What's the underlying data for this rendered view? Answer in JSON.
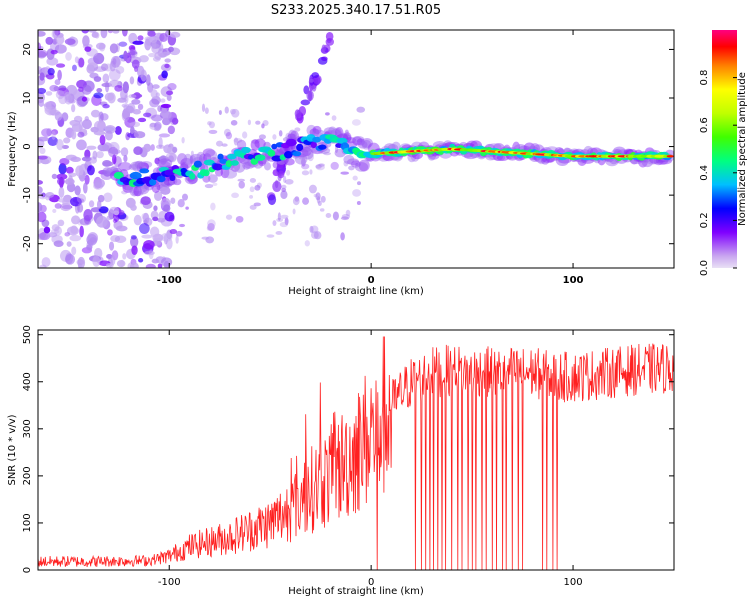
{
  "chart_data": [
    {
      "type": "heatmap",
      "title": "S233.2025.340.17.51.R05",
      "xlabel": "Height of straight line (km)",
      "ylabel": "Frequency (Hz)",
      "xlim": [
        -165,
        150
      ],
      "ylim": [
        -25,
        24
      ],
      "xticks": [
        -100,
        0,
        100
      ],
      "yticks": [
        -20,
        -10,
        0,
        10,
        20
      ],
      "colorbar": {
        "label": "Normalized spectral amplitude",
        "range": [
          0,
          1
        ],
        "ticks": [
          "0.0",
          "0.2",
          "0.4",
          "0.6",
          "0.8"
        ],
        "colors": [
          "#e9e0f5",
          "#7f00ff",
          "#0000ff",
          "#00bfff",
          "#00ff80",
          "#7fff00",
          "#ffff00",
          "#ff8000",
          "#ff0000",
          "#ff0080"
        ]
      },
      "ridge": {
        "height_km": [
          -125,
          -110,
          -95,
          -85,
          -75,
          -65,
          -55,
          -45,
          -35,
          -25,
          -15,
          -5,
          0,
          20,
          40,
          60,
          80,
          100,
          120,
          148
        ],
        "frequency_hz": [
          -7,
          -6,
          -5,
          -4.5,
          -3.5,
          -2.5,
          -1.5,
          -1,
          0,
          1,
          0.5,
          -1.5,
          -1.5,
          -1,
          -0.5,
          -1,
          -1.5,
          -2,
          -2,
          -2
        ]
      }
    },
    {
      "type": "line",
      "title": "",
      "xlabel": "Height of straight line (km)",
      "ylabel": "SNR (10 * v/v)",
      "xlim": [
        -165,
        150
      ],
      "ylim": [
        0,
        510
      ],
      "xticks": [
        -100,
        0,
        100
      ],
      "yticks": [
        0,
        100,
        200,
        300,
        400,
        500
      ],
      "color": "#ff2020",
      "envelope": {
        "height_km": [
          -165,
          -140,
          -110,
          -100,
          -90,
          -80,
          -70,
          -60,
          -50,
          -40,
          -30,
          -20,
          -10,
          0,
          10,
          20,
          30,
          40,
          60,
          80,
          90,
          100,
          110,
          130,
          150
        ],
        "snr": [
          18,
          18,
          20,
          30,
          50,
          60,
          70,
          85,
          100,
          130,
          170,
          200,
          240,
          290,
          350,
          400,
          420,
          425,
          420,
          420,
          410,
          410,
          415,
          425,
          430
        ]
      },
      "dropouts_km": [
        3,
        22,
        25,
        27,
        29,
        31,
        33,
        35,
        37,
        40,
        43,
        45,
        48,
        50,
        52,
        55,
        57,
        60,
        62,
        65,
        67,
        70,
        73,
        75,
        85,
        87,
        90,
        92
      ]
    }
  ]
}
